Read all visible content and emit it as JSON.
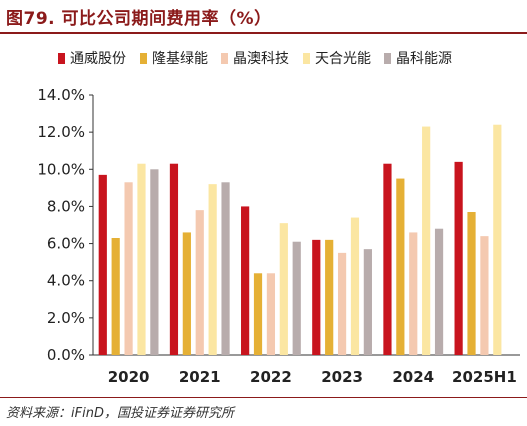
{
  "header": {
    "title": "图79. 可比公司期间费用率（%）"
  },
  "footer": {
    "source": "资料来源：iFinD，国投证券证券研究所"
  },
  "chart_data": {
    "type": "bar",
    "categories": [
      "2020",
      "2021",
      "2022",
      "2023",
      "2024",
      "2025H1"
    ],
    "ylim": [
      0,
      14
    ],
    "yticks": [
      "0.0%",
      "2.0%",
      "4.0%",
      "6.0%",
      "8.0%",
      "10.0%",
      "12.0%",
      "14.0%"
    ],
    "grid": false,
    "legend_position": "top",
    "series": [
      {
        "name": "通威股份",
        "color": "#C8141E",
        "values": [
          9.7,
          10.3,
          8.0,
          6.2,
          10.3,
          10.4
        ]
      },
      {
        "name": "隆基绿能",
        "color": "#E5B035",
        "values": [
          6.3,
          6.6,
          4.4,
          6.2,
          9.5,
          7.7
        ]
      },
      {
        "name": "晶澳科技",
        "color": "#F4C9B0",
        "values": [
          9.3,
          7.8,
          4.4,
          5.5,
          6.6,
          6.4
        ]
      },
      {
        "name": "天合光能",
        "color": "#FBE6A2",
        "values": [
          10.3,
          9.2,
          7.1,
          7.4,
          12.3,
          12.4
        ]
      },
      {
        "name": "晶科能源",
        "color": "#B8ACAC",
        "values": [
          10.0,
          9.3,
          6.1,
          5.7,
          6.8,
          null
        ]
      }
    ]
  }
}
